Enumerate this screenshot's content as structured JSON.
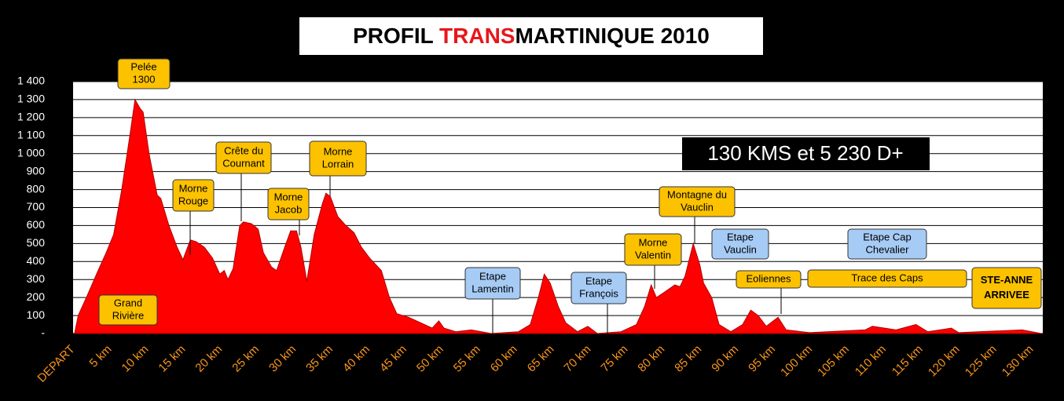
{
  "chart_data": {
    "type": "area",
    "title": [
      {
        "text": "PROFIL ",
        "color": "#000000"
      },
      {
        "text": "TRANS",
        "color": "#e8161b"
      },
      {
        "text": "MARTINIQUE 2010",
        "color": "#000000"
      }
    ],
    "summary": "130 KMS et 5 230 D+",
    "color": "#ff0000",
    "grid": true,
    "xlim": [
      0,
      131.5
    ],
    "ylim": [
      0,
      1400
    ],
    "xticks": [
      {
        "value": 0,
        "label": "DEPART"
      },
      {
        "value": 5,
        "label": "5 km"
      },
      {
        "value": 10,
        "label": "10 km"
      },
      {
        "value": 15,
        "label": "15 km"
      },
      {
        "value": 20,
        "label": "20 km"
      },
      {
        "value": 25,
        "label": "25 km"
      },
      {
        "value": 30,
        "label": "30 km"
      },
      {
        "value": 35,
        "label": "35 km"
      },
      {
        "value": 40,
        "label": "40 km"
      },
      {
        "value": 45,
        "label": "45 km"
      },
      {
        "value": 50,
        "label": "50 km"
      },
      {
        "value": 55,
        "label": "55 km"
      },
      {
        "value": 60,
        "label": "60 km"
      },
      {
        "value": 65,
        "label": "65 km"
      },
      {
        "value": 70,
        "label": "70 km"
      },
      {
        "value": 75,
        "label": "75 km"
      },
      {
        "value": 80,
        "label": "80 km"
      },
      {
        "value": 85,
        "label": "85 km"
      },
      {
        "value": 90,
        "label": "90 km"
      },
      {
        "value": 95,
        "label": "95 km"
      },
      {
        "value": 100,
        "label": "100 km"
      },
      {
        "value": 105,
        "label": "105 km"
      },
      {
        "value": 110,
        "label": "110 km"
      },
      {
        "value": 115,
        "label": "115 km"
      },
      {
        "value": 120,
        "label": "120 km"
      },
      {
        "value": 125,
        "label": "125 km"
      },
      {
        "value": 130,
        "label": "130 km"
      }
    ],
    "yticks": [
      {
        "value": 0,
        "label": "-"
      },
      100,
      200,
      300,
      400,
      500,
      600,
      700,
      800,
      900,
      {
        "value": 1000,
        "label": "1 000"
      },
      {
        "value": 1100,
        "label": "1 100"
      },
      {
        "value": 1200,
        "label": "1 200"
      },
      {
        "value": 1300,
        "label": "1 300"
      },
      {
        "value": 1400,
        "label": "1 400"
      }
    ],
    "x": [
      0.2,
      0.7,
      1.8,
      3.4,
      4.5,
      5.5,
      6.6,
      7.7,
      8.4,
      9.1,
      9.5,
      10.3,
      11.4,
      11.9,
      13.0,
      14.1,
      14.9,
      15.9,
      16.7,
      17.8,
      18.9,
      19.9,
      20.5,
      21.0,
      21.7,
      22.6,
      23.1,
      24.2,
      25.1,
      25.8,
      26.9,
      27.6,
      28.7,
      29.5,
      30.3,
      30.9,
      31.7,
      32.7,
      33.8,
      34.3,
      34.9,
      35.9,
      37.0,
      38.1,
      39.1,
      40.2,
      41.8,
      42.9,
      43.9,
      45.5,
      47.1,
      48.7,
      49.6,
      50.3,
      51.9,
      54.0,
      56.7,
      60.4,
      62.0,
      63.1,
      63.9,
      64.7,
      65.8,
      66.8,
      68.4,
      69.8,
      71.1,
      74.3,
      76.4,
      77.5,
      78.4,
      79.1,
      80.2,
      81.6,
      82.3,
      83.0,
      84.1,
      85.0,
      85.5,
      86.6,
      87.6,
      89.2,
      90.8,
      91.9,
      92.9,
      94.0,
      95.6,
      96.7,
      99.9,
      107.4,
      108.4,
      111.6,
      114.3,
      115.9,
      119.1,
      120.1,
      128.7,
      131.3
    ],
    "values": [
      0,
      100,
      200,
      350,
      450,
      550,
      800,
      1100,
      1300,
      1250,
      1230,
      1000,
      770,
      750,
      600,
      480,
      410,
      520,
      510,
      480,
      420,
      330,
      350,
      300,
      360,
      600,
      620,
      610,
      580,
      450,
      370,
      350,
      480,
      570,
      570,
      480,
      290,
      550,
      720,
      780,
      760,
      650,
      600,
      560,
      480,
      420,
      350,
      200,
      110,
      90,
      60,
      30,
      70,
      30,
      10,
      20,
      0,
      10,
      50,
      200,
      330,
      280,
      150,
      60,
      10,
      40,
      0,
      10,
      50,
      150,
      270,
      200,
      230,
      270,
      260,
      320,
      500,
      380,
      280,
      200,
      50,
      10,
      50,
      130,
      100,
      40,
      90,
      20,
      5,
      20,
      40,
      20,
      50,
      10,
      30,
      5,
      20,
      0
    ],
    "annotations": [
      {
        "lines": [
          "Pelée",
          "1300"
        ],
        "color": "#fcc200"
      },
      {
        "lines": [
          "Grand",
          "Rivière"
        ],
        "color": "#fcc200"
      },
      {
        "lines": [
          "Morne",
          "Rouge"
        ],
        "color": "#fcc200"
      },
      {
        "lines": [
          "Crête du",
          "Cournant"
        ],
        "color": "#fcc200"
      },
      {
        "lines": [
          "Morne",
          "Jacob"
        ],
        "color": "#fcc200"
      },
      {
        "lines": [
          "Morne",
          "Lorrain"
        ],
        "color": "#fcc200"
      },
      {
        "lines": [
          "Etape",
          "Lamentin"
        ],
        "color": "#a6cbf5"
      },
      {
        "lines": [
          "Etape",
          "François"
        ],
        "color": "#a6cbf5"
      },
      {
        "lines": [
          "Morne",
          "Valentin"
        ],
        "color": "#fcc200"
      },
      {
        "lines": [
          "Montagne du",
          "Vauclin"
        ],
        "color": "#fcc200"
      },
      {
        "lines": [
          "Etape",
          "Vauclin"
        ],
        "color": "#a6cbf5"
      },
      {
        "lines": [
          "Etape Cap",
          "Chevalier"
        ],
        "color": "#a6cbf5"
      },
      {
        "lines": [
          "Eoliennes"
        ],
        "color": "#fcc200"
      },
      {
        "lines": [
          "Trace des Caps"
        ],
        "color": "#fcc200"
      },
      {
        "lines": [
          "STE-ANNE",
          "ARRIVEE"
        ],
        "color": "#fcc200"
      }
    ]
  }
}
